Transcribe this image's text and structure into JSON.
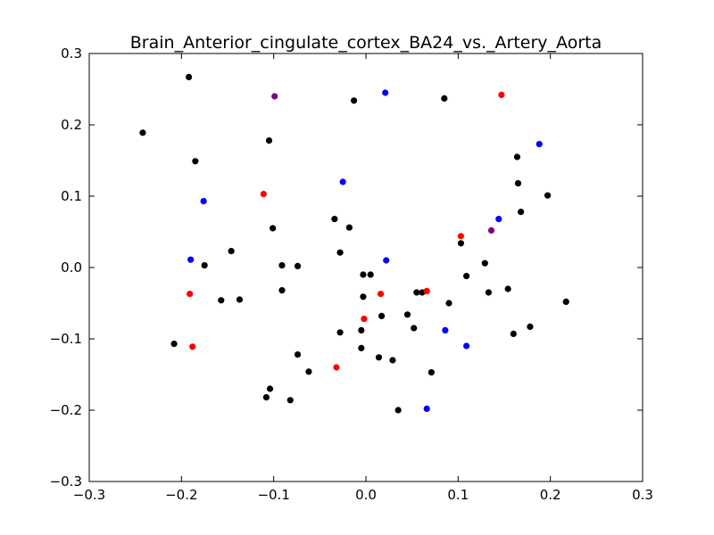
{
  "chart_data": {
    "type": "scatter",
    "title": "Brain_Anterior_cingulate_cortex_BA24_vs._Artery_Aorta",
    "xlabel": "",
    "ylabel": "",
    "xlim": [
      -0.3,
      0.3
    ],
    "ylim": [
      -0.3,
      0.3
    ],
    "xticks": [
      -0.3,
      -0.2,
      -0.1,
      0.0,
      0.1,
      0.2,
      0.3
    ],
    "yticks": [
      -0.3,
      -0.2,
      -0.1,
      0.0,
      0.1,
      0.2,
      0.3
    ],
    "xtick_labels": [
      "−0.3",
      "−0.2",
      "−0.1",
      "0.0",
      "0.1",
      "0.2",
      "0.3"
    ],
    "ytick_labels": [
      "−0.3",
      "−0.2",
      "−0.1",
      "0.0",
      "0.1",
      "0.2",
      "0.3"
    ],
    "grid": false,
    "colors": {
      "black": "#000000",
      "red": "#ff0000",
      "blue": "#0000ff",
      "purple": "#800080"
    },
    "series": [
      {
        "name": "black",
        "color": "#000000",
        "points": [
          [
            -0.192,
            0.267
          ],
          [
            -0.242,
            0.189
          ],
          [
            -0.185,
            0.149
          ],
          [
            -0.105,
            0.178
          ],
          [
            -0.013,
            0.234
          ],
          [
            0.085,
            0.237
          ],
          [
            0.164,
            0.155
          ],
          [
            0.165,
            0.118
          ],
          [
            0.197,
            0.101
          ],
          [
            0.168,
            0.078
          ],
          [
            -0.101,
            0.055
          ],
          [
            -0.034,
            0.068
          ],
          [
            -0.018,
            0.056
          ],
          [
            -0.146,
            0.023
          ],
          [
            -0.175,
            0.003
          ],
          [
            -0.091,
            0.003
          ],
          [
            -0.074,
            0.002
          ],
          [
            -0.028,
            0.021
          ],
          [
            -0.003,
            -0.01
          ],
          [
            0.005,
            -0.01
          ],
          [
            0.103,
            0.034
          ],
          [
            0.129,
            0.006
          ],
          [
            0.109,
            -0.012
          ],
          [
            -0.091,
            -0.032
          ],
          [
            -0.157,
            -0.046
          ],
          [
            -0.137,
            -0.045
          ],
          [
            -0.003,
            -0.041
          ],
          [
            0.055,
            -0.035
          ],
          [
            0.061,
            -0.035
          ],
          [
            0.09,
            -0.05
          ],
          [
            0.133,
            -0.035
          ],
          [
            0.154,
            -0.03
          ],
          [
            0.217,
            -0.048
          ],
          [
            0.045,
            -0.066
          ],
          [
            0.017,
            -0.068
          ],
          [
            0.052,
            -0.085
          ],
          [
            -0.005,
            -0.088
          ],
          [
            -0.028,
            -0.091
          ],
          [
            0.16,
            -0.093
          ],
          [
            0.178,
            -0.083
          ],
          [
            -0.208,
            -0.107
          ],
          [
            -0.074,
            -0.122
          ],
          [
            -0.005,
            -0.113
          ],
          [
            0.014,
            -0.126
          ],
          [
            0.029,
            -0.13
          ],
          [
            -0.062,
            -0.146
          ],
          [
            0.071,
            -0.147
          ],
          [
            -0.104,
            -0.17
          ],
          [
            -0.108,
            -0.182
          ],
          [
            -0.082,
            -0.186
          ],
          [
            0.035,
            -0.2
          ]
        ]
      },
      {
        "name": "red",
        "color": "#ff0000",
        "points": [
          [
            0.147,
            0.242
          ],
          [
            -0.111,
            0.103
          ],
          [
            0.103,
            0.044
          ],
          [
            -0.191,
            -0.037
          ],
          [
            0.016,
            -0.037
          ],
          [
            0.066,
            -0.033
          ],
          [
            -0.002,
            -0.072
          ],
          [
            -0.188,
            -0.111
          ],
          [
            -0.032,
            -0.14
          ]
        ]
      },
      {
        "name": "blue",
        "color": "#0000ff",
        "points": [
          [
            0.021,
            0.245
          ],
          [
            0.188,
            0.173
          ],
          [
            -0.025,
            0.12
          ],
          [
            -0.176,
            0.093
          ],
          [
            0.144,
            0.068
          ],
          [
            -0.19,
            0.011
          ],
          [
            0.022,
            0.01
          ],
          [
            0.086,
            -0.088
          ],
          [
            0.109,
            -0.11
          ],
          [
            0.066,
            -0.198
          ]
        ]
      },
      {
        "name": "purple",
        "color": "#800080",
        "points": [
          [
            -0.099,
            0.24
          ],
          [
            0.136,
            0.052
          ]
        ]
      }
    ]
  }
}
